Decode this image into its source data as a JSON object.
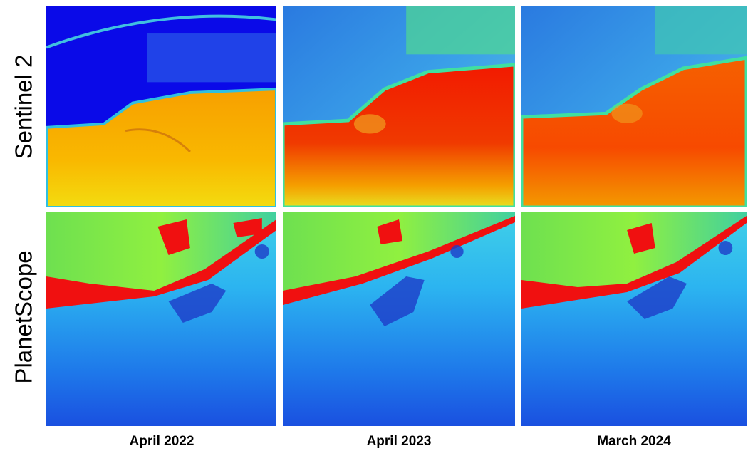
{
  "row_labels": [
    "Sentinel 2",
    "PlanetScope"
  ],
  "column_labels": [
    "April 2022",
    "April 2023",
    "March 2024"
  ]
}
